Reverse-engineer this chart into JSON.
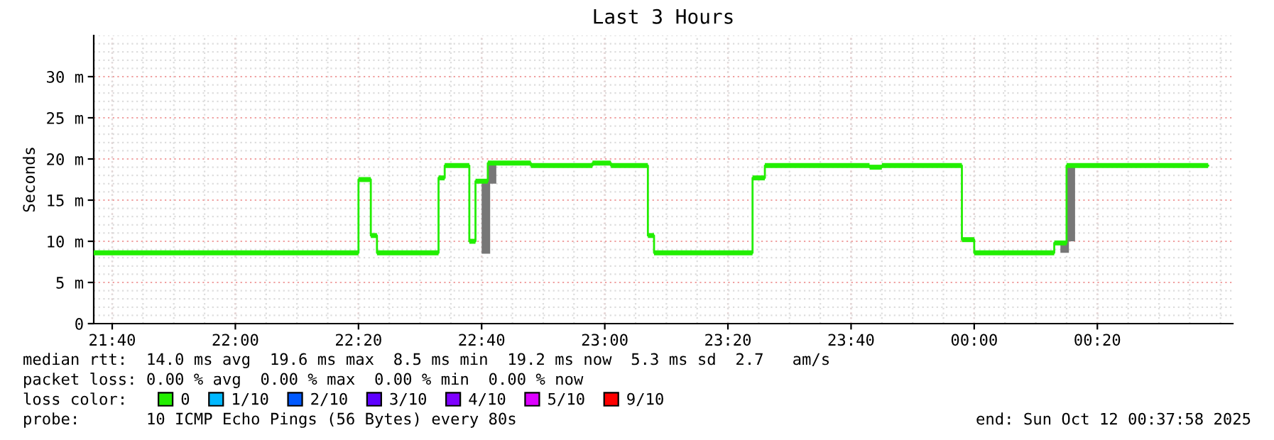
{
  "chart_data": {
    "type": "step",
    "title": "Last 3 Hours",
    "ylabel": "Seconds",
    "xlim": [
      "2025-10-11T21:37",
      "2025-10-12T00:42"
    ],
    "ylim": [
      0,
      35
    ],
    "xticks": [
      {
        "value": "2025-10-11T21:40",
        "label": "21:40"
      },
      {
        "value": "2025-10-11T22:00",
        "label": "22:00"
      },
      {
        "value": "2025-10-11T22:20",
        "label": "22:20"
      },
      {
        "value": "2025-10-11T22:40",
        "label": "22:40"
      },
      {
        "value": "2025-10-11T23:00",
        "label": "23:00"
      },
      {
        "value": "2025-10-11T23:20",
        "label": "23:20"
      },
      {
        "value": "2025-10-11T23:40",
        "label": "23:40"
      },
      {
        "value": "2025-10-12T00:00",
        "label": "00:00"
      },
      {
        "value": "2025-10-12T00:20",
        "label": "00:20"
      }
    ],
    "yticks": [
      0,
      {
        "value": 5,
        "label": "5 m"
      },
      {
        "value": 10,
        "label": "10 m"
      },
      {
        "value": 15,
        "label": "15 m"
      },
      {
        "value": 20,
        "label": "20 m"
      },
      {
        "value": 25,
        "label": "25 m"
      },
      {
        "value": 30,
        "label": "30 m"
      }
    ],
    "grid": true,
    "legend": "bottom",
    "series": [
      {
        "type": "bar",
        "color": "#777777",
        "x": [
          "2025-10-11T22:40",
          "2025-10-11T22:41",
          "2025-10-12T00:14",
          "2025-10-12T00:15"
        ],
        "base": [
          8.5,
          17.0,
          8.6,
          10.0
        ],
        "values": [
          8.8,
          2.5,
          1.4,
          9.2
        ]
      },
      {
        "name": "0",
        "color": "#22ee00",
        "x": [
          "2025-10-11T21:37",
          "2025-10-11T22:20",
          "2025-10-11T22:22",
          "2025-10-11T22:23",
          "2025-10-11T22:33",
          "2025-10-11T22:34",
          "2025-10-11T22:38",
          "2025-10-11T22:39",
          "2025-10-11T22:41",
          "2025-10-11T22:48",
          "2025-10-11T22:58",
          "2025-10-11T23:01",
          "2025-10-11T23:07",
          "2025-10-11T23:08",
          "2025-10-11T23:24",
          "2025-10-11T23:26",
          "2025-10-11T23:43",
          "2025-10-11T23:45",
          "2025-10-11T23:58",
          "2025-10-12T00:00",
          "2025-10-12T00:13",
          "2025-10-12T00:15",
          "2025-10-12T00:38"
        ],
        "values": [
          8.6,
          17.5,
          10.7,
          8.6,
          17.7,
          19.2,
          10.0,
          17.3,
          19.5,
          19.2,
          19.5,
          19.2,
          10.7,
          8.6,
          17.7,
          19.2,
          19.0,
          19.2,
          10.2,
          8.6,
          9.8,
          19.2,
          19.2
        ]
      },
      {
        "name": "1/10",
        "color": "#00b8ff"
      },
      {
        "name": "2/10",
        "color": "#0059ff"
      },
      {
        "name": "3/10",
        "color": "#5e00ff"
      },
      {
        "name": "4/10",
        "color": "#7e00ff"
      },
      {
        "name": "5/10",
        "color": "#dd00ff"
      },
      {
        "name": "9/10",
        "color": "#ff0000"
      }
    ],
    "annotations": [
      "median rtt:  14.0 ms avg  19.6 ms max  8.5 ms min  19.2 ms now  5.3 ms sd  2.7   am/s",
      "packet loss: 0.00 % avg  0.00 % max  0.00 % min  0.00 % now",
      "loss color:",
      "probe:       10 ICMP Echo Pings (56 Bytes) every 80s",
      "end: Sun Oct 12 00:37:58 2025"
    ]
  }
}
